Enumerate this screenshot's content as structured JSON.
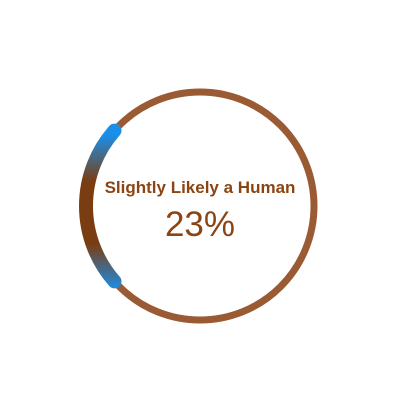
{
  "gauge": {
    "label": "Slightly Likely a Human",
    "value_text": "23%",
    "value_fraction": 0.23,
    "colors": {
      "track": "#9a5b34",
      "arc_outer": "#1a8fe8",
      "arc_inner": "#7a3d12",
      "text": "#8b4513"
    }
  }
}
